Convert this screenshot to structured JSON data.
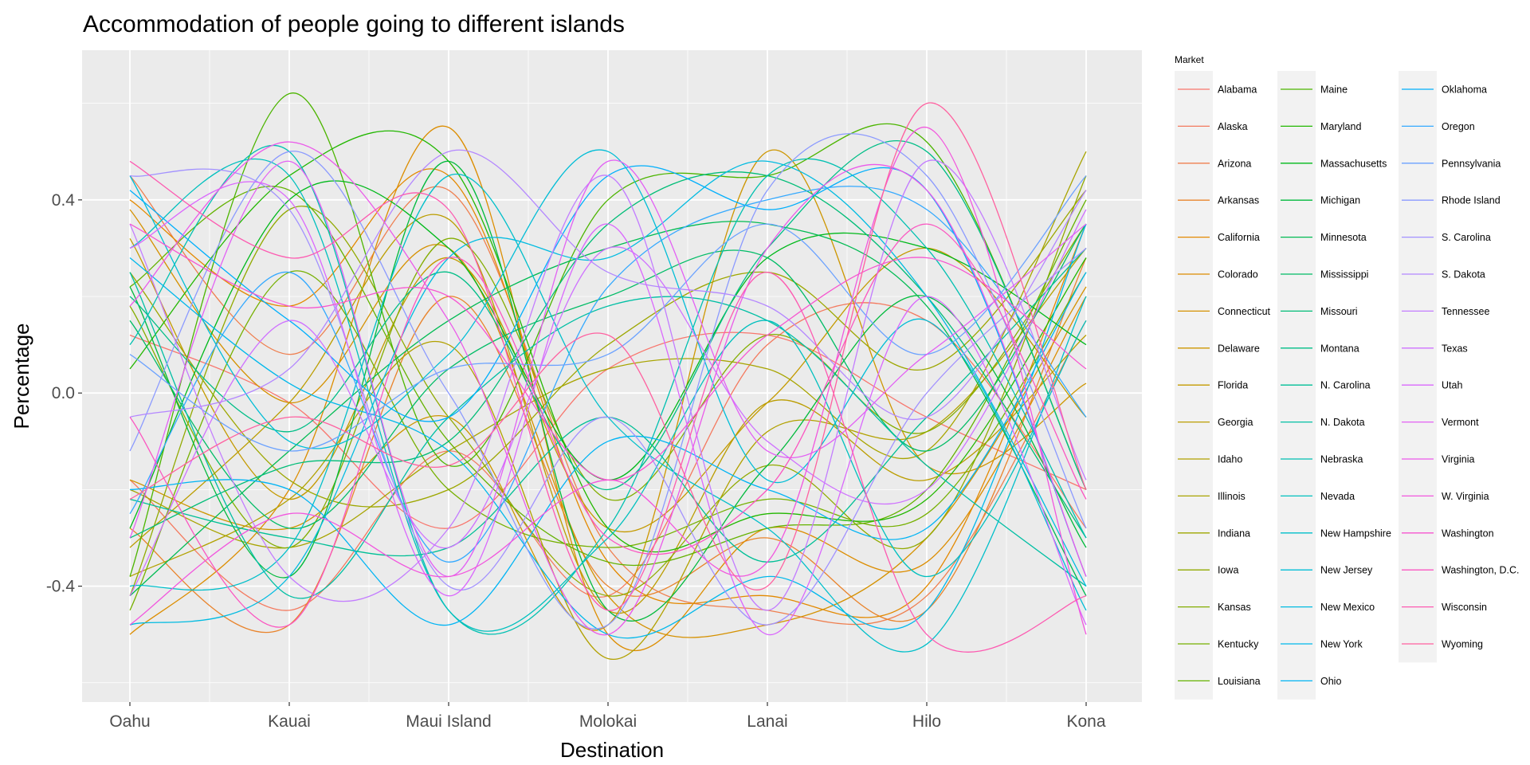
{
  "chart_data": {
    "type": "line",
    "title": "Accommodation of people going to different islands",
    "xlabel": "Destination",
    "ylabel": "Percentage",
    "categories": [
      "Oahu",
      "Kauai",
      "Maui Island",
      "Molokai",
      "Lanai",
      "Hilo",
      "Kona"
    ],
    "yticks": [
      "0.4",
      "0.0",
      "-0.4"
    ],
    "ytick_values": [
      0.4,
      0.0,
      -0.4
    ],
    "ylim": [
      -0.64,
      0.71
    ],
    "grid": true,
    "panel_color": "#ebebeb",
    "legend": {
      "title": "Market",
      "position": "right",
      "columns": 3
    },
    "series": [
      {
        "name": "Alabama",
        "color": "#F8766D",
        "values": [
          0.12,
          -0.02,
          -0.28,
          0.05,
          0.12,
          -0.05,
          -0.2
        ]
      },
      {
        "name": "Alaska",
        "color": "#F47A5F",
        "values": [
          -0.18,
          -0.45,
          -0.12,
          -0.42,
          0.1,
          0.15,
          -0.28
        ]
      },
      {
        "name": "Arizona",
        "color": "#EF7F4F",
        "values": [
          0.45,
          0.08,
          0.42,
          -0.32,
          -0.45,
          -0.42,
          0.15
        ]
      },
      {
        "name": "Arkansas",
        "color": "#E9842C",
        "values": [
          -0.28,
          -0.48,
          0.2,
          -0.4,
          -0.3,
          -0.45,
          0.28
        ]
      },
      {
        "name": "California",
        "color": "#E38900",
        "values": [
          0.4,
          0.18,
          0.45,
          -0.35,
          -0.42,
          -0.4,
          0.35
        ]
      },
      {
        "name": "Colorado",
        "color": "#DC8D00",
        "values": [
          -0.5,
          -0.2,
          0.55,
          -0.5,
          -0.28,
          -0.35,
          0.2
        ]
      },
      {
        "name": "Connecticut",
        "color": "#D59100",
        "values": [
          0.38,
          -0.02,
          0.3,
          -0.42,
          -0.48,
          -0.3,
          0.22
        ]
      },
      {
        "name": "Delaware",
        "color": "#CD9600",
        "values": [
          -0.18,
          -0.28,
          -0.05,
          -0.48,
          0.5,
          -0.15,
          0.02
        ]
      },
      {
        "name": "Florida",
        "color": "#C49A00",
        "values": [
          0.32,
          -0.22,
          0.28,
          -0.28,
          -0.02,
          0.3,
          -0.05
        ]
      },
      {
        "name": "Georgia",
        "color": "#BB9D00",
        "values": [
          -0.32,
          -0.02,
          0.36,
          -0.45,
          -0.02,
          -0.18,
          0.12
        ]
      },
      {
        "name": "Idaho",
        "color": "#B2A100",
        "values": [
          -0.38,
          -0.22,
          0.1,
          -0.55,
          -0.08,
          -0.08,
          0.3
        ]
      },
      {
        "name": "Illinois",
        "color": "#A8A400",
        "values": [
          -0.2,
          -0.32,
          -0.12,
          0.05,
          0.05,
          -0.12,
          0.5
        ]
      },
      {
        "name": "Indiana",
        "color": "#9DA700",
        "values": [
          0.25,
          -0.18,
          -0.2,
          0.1,
          0.25,
          0.05,
          0.42
        ]
      },
      {
        "name": "Iowa",
        "color": "#91AA00",
        "values": [
          -0.42,
          0.38,
          -0.05,
          -0.42,
          -0.15,
          -0.3,
          0.45
        ]
      },
      {
        "name": "Kansas",
        "color": "#84AD00",
        "values": [
          0.18,
          -0.32,
          0.32,
          -0.22,
          0.12,
          -0.08,
          0.35
        ]
      },
      {
        "name": "Kentucky",
        "color": "#76B000",
        "values": [
          -0.45,
          0.25,
          -0.2,
          -0.32,
          -0.22,
          -0.25,
          0.25
        ]
      },
      {
        "name": "Louisiana",
        "color": "#64B200",
        "values": [
          0.22,
          0.42,
          -0.1,
          -0.35,
          -0.28,
          -0.2,
          0.4
        ]
      },
      {
        "name": "Maine",
        "color": "#4CB500",
        "values": [
          -0.38,
          0.62,
          -0.15,
          0.4,
          0.45,
          0.52,
          -0.2
        ]
      },
      {
        "name": "Maryland",
        "color": "#22B700",
        "values": [
          0.05,
          0.45,
          0.48,
          -0.28,
          -0.25,
          -0.22,
          0.28
        ]
      },
      {
        "name": "Massachusetts",
        "color": "#00B91A",
        "values": [
          -0.28,
          0.4,
          0.3,
          -0.18,
          0.28,
          0.3,
          0.1
        ]
      },
      {
        "name": "Michigan",
        "color": "#00BA3C",
        "values": [
          0.22,
          -0.38,
          0.48,
          -0.45,
          -0.15,
          0.2,
          -0.32
        ]
      },
      {
        "name": "Minnesota",
        "color": "#00BB53",
        "values": [
          -0.42,
          -0.12,
          0.15,
          0.3,
          0.35,
          0.18,
          -0.42
        ]
      },
      {
        "name": "Mississippi",
        "color": "#00BC66",
        "values": [
          0.15,
          -0.28,
          0.05,
          0.2,
          0.28,
          -0.12,
          0.35
        ]
      },
      {
        "name": "Missouri",
        "color": "#00BD77",
        "values": [
          -0.3,
          -0.15,
          -0.1,
          0.35,
          0.45,
          0.2,
          -0.3
        ]
      },
      {
        "name": "Montana",
        "color": "#00BE87",
        "values": [
          0.2,
          -0.08,
          0.25,
          -0.2,
          0.3,
          0.5,
          -0.2
        ]
      },
      {
        "name": "N. Carolina",
        "color": "#00BF96",
        "values": [
          -0.22,
          -0.3,
          -0.32,
          -0.05,
          -0.35,
          -0.05,
          0.3
        ]
      },
      {
        "name": "N. Dakota",
        "color": "#00BFA4",
        "values": [
          0.25,
          -0.42,
          -0.05,
          0.18,
          0.15,
          -0.15,
          -0.4
        ]
      },
      {
        "name": "Nebraska",
        "color": "#00C0B1",
        "values": [
          0.1,
          0.5,
          -0.45,
          -0.28,
          0.45,
          0.3,
          -0.3
        ]
      },
      {
        "name": "Nevada",
        "color": "#00C0BE",
        "values": [
          0.3,
          0.45,
          -0.45,
          -0.3,
          0.15,
          -0.38,
          0.15
        ]
      },
      {
        "name": "New Hampshire",
        "color": "#00BFCA",
        "values": [
          -0.4,
          -0.32,
          0.45,
          -0.05,
          -0.28,
          -0.52,
          0.2
        ]
      },
      {
        "name": "New Jersey",
        "color": "#00BDD6",
        "values": [
          0.45,
          -0.1,
          0.08,
          0.5,
          -0.18,
          0.15,
          -0.45
        ]
      },
      {
        "name": "New Mexico",
        "color": "#00BBE1",
        "values": [
          -0.48,
          -0.38,
          0.28,
          0.28,
          0.48,
          0.2,
          -0.4
        ]
      },
      {
        "name": "New York",
        "color": "#00B8EB",
        "values": [
          0.28,
          0.02,
          -0.12,
          -0.5,
          -0.38,
          -0.45,
          0.35
        ]
      },
      {
        "name": "Ohio",
        "color": "#00B4F4",
        "values": [
          -0.2,
          -0.2,
          -0.48,
          -0.1,
          -0.2,
          -0.28,
          0.25
        ]
      },
      {
        "name": "Oklahoma",
        "color": "#00AFFC",
        "values": [
          0.42,
          0.15,
          -0.05,
          0.45,
          0.38,
          0.42,
          -0.38
        ]
      },
      {
        "name": "Oregon",
        "color": "#34A9FF",
        "values": [
          -0.25,
          0.25,
          -0.35,
          0.22,
          0.4,
          0.38,
          -0.05
        ]
      },
      {
        "name": "Pennsylvania",
        "color": "#6BA2FF",
        "values": [
          0.08,
          -0.12,
          0.05,
          0.08,
          0.35,
          0.08,
          0.45
        ]
      },
      {
        "name": "Rhode Island",
        "color": "#8B9AFF",
        "values": [
          -0.12,
          0.5,
          0.0,
          -0.48,
          0.42,
          0.45,
          -0.28
        ]
      },
      {
        "name": "S. Carolina",
        "color": "#A291FF",
        "values": [
          0.45,
          0.38,
          -0.4,
          -0.05,
          -0.48,
          0.0,
          0.3
        ]
      },
      {
        "name": "S. Dakota",
        "color": "#B487FF",
        "values": [
          -0.05,
          0.05,
          0.5,
          0.25,
          0.18,
          -0.05,
          0.42
        ]
      },
      {
        "name": "Tennessee",
        "color": "#C37DFF",
        "values": [
          0.35,
          -0.38,
          -0.28,
          0.45,
          -0.45,
          0.48,
          -0.18
        ]
      },
      {
        "name": "Texas",
        "color": "#CF72FF",
        "values": [
          -0.42,
          0.15,
          -0.32,
          0.3,
          -0.1,
          -0.2,
          0.38
        ]
      },
      {
        "name": "Utah",
        "color": "#DA68FD",
        "values": [
          0.3,
          0.4,
          -0.42,
          0.35,
          -0.5,
          0.2,
          -0.48
        ]
      },
      {
        "name": "Vermont",
        "color": "#E360F4",
        "values": [
          -0.3,
          0.48,
          -0.38,
          0.48,
          -0.12,
          0.08,
          0.35
        ]
      },
      {
        "name": "Virginia",
        "color": "#EB5AEA",
        "values": [
          0.18,
          0.52,
          0.15,
          -0.5,
          0.3,
          0.42,
          -0.38
        ]
      },
      {
        "name": "W. Virginia",
        "color": "#F256DE",
        "values": [
          -0.48,
          -0.25,
          -0.38,
          -0.18,
          -0.35,
          0.55,
          -0.5
        ]
      },
      {
        "name": "Washington",
        "color": "#F755D0",
        "values": [
          0.35,
          0.18,
          0.2,
          -0.18,
          0.12,
          0.28,
          0.05
        ]
      },
      {
        "name": "Washington, D.C.",
        "color": "#FB56C1",
        "values": [
          -0.05,
          -0.48,
          0.28,
          -0.3,
          -0.2,
          0.35,
          -0.22
        ]
      },
      {
        "name": "Wisconsin",
        "color": "#FD5AB1",
        "values": [
          0.48,
          0.28,
          0.38,
          -0.45,
          0.25,
          -0.5,
          -0.42
        ]
      },
      {
        "name": "Wyoming",
        "color": "#FF61A0",
        "values": [
          -0.22,
          -0.05,
          -0.15,
          0.12,
          -0.4,
          0.6,
          -0.2
        ]
      }
    ]
  }
}
